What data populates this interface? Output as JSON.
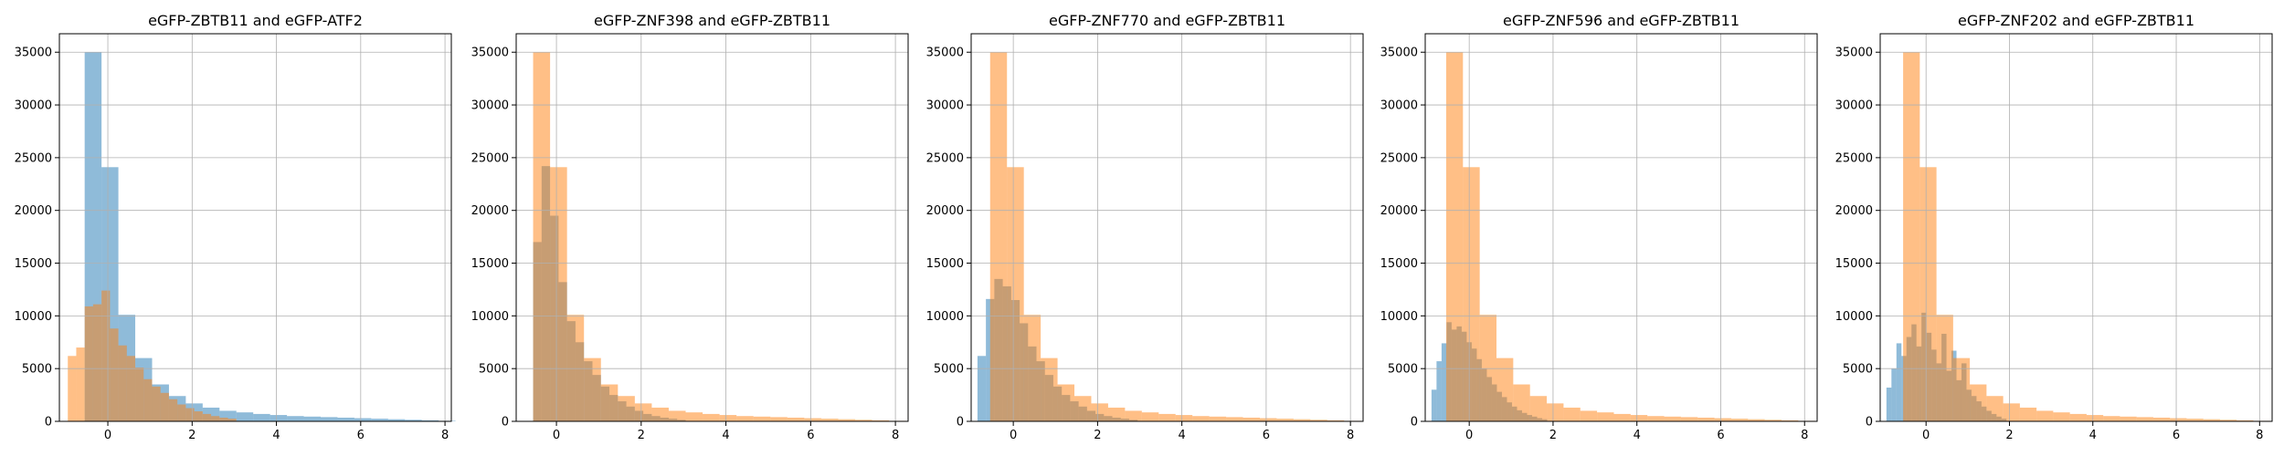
{
  "chart_data": [
    {
      "type": "bar",
      "title": "eGFP-ZBTB11 and eGFP-ATF2",
      "xlabel": "",
      "ylabel": "",
      "xlim": [
        -1.15,
        8.15
      ],
      "ylim": [
        0,
        36750
      ],
      "xticks": [
        0,
        2,
        4,
        6,
        8
      ],
      "yticks": [
        0,
        5000,
        10000,
        15000,
        20000,
        25000,
        30000,
        35000
      ],
      "grid": true,
      "series": [
        {
          "color": "#1f77b4",
          "opacity": 0.5,
          "bin_start": -0.55,
          "bin_width": 0.4,
          "values": [
            35000,
            24100,
            10100,
            6000,
            3500,
            2400,
            1700,
            1300,
            1000,
            850,
            700,
            600,
            500,
            450,
            400,
            350,
            300,
            250,
            200,
            150,
            100,
            50
          ]
        },
        {
          "color": "#ff7f0e",
          "opacity": 0.5,
          "bin_start": -0.95,
          "bin_width": 0.2,
          "values": [
            6200,
            7000,
            10900,
            11100,
            12400,
            8800,
            7200,
            6200,
            5100,
            4000,
            3300,
            2700,
            2100,
            1600,
            1250,
            950,
            700,
            500,
            350,
            250
          ]
        }
      ]
    },
    {
      "type": "bar",
      "title": "eGFP-ZNF398 and eGFP-ZBTB11",
      "xlabel": "",
      "ylabel": "",
      "xlim": [
        -0.95,
        8.3
      ],
      "ylim": [
        0,
        36750
      ],
      "xticks": [
        0,
        2,
        4,
        6,
        8
      ],
      "yticks": [
        0,
        5000,
        10000,
        15000,
        20000,
        25000,
        30000,
        35000
      ],
      "grid": true,
      "series": [
        {
          "color": "#1f77b4",
          "opacity": 0.5,
          "bin_start": -0.55,
          "bin_width": 0.2,
          "values": [
            17000,
            24200,
            19500,
            13200,
            9500,
            7500,
            5700,
            4400,
            3300,
            2500,
            1900,
            1400,
            1000,
            700,
            500,
            350,
            250,
            150
          ]
        },
        {
          "color": "#ff7f0e",
          "opacity": 0.5,
          "bin_start": -0.55,
          "bin_width": 0.4,
          "values": [
            35000,
            24100,
            10100,
            6000,
            3500,
            2400,
            1700,
            1300,
            1000,
            850,
            700,
            600,
            500,
            450,
            400,
            350,
            300,
            250,
            200,
            150,
            100,
            50
          ]
        }
      ]
    },
    {
      "type": "bar",
      "title": "eGFP-ZNF770 and eGFP-ZBTB11",
      "xlabel": "",
      "ylabel": "",
      "xlim": [
        -1.0,
        8.3
      ],
      "ylim": [
        0,
        36750
      ],
      "xticks": [
        0,
        2,
        4,
        6,
        8
      ],
      "yticks": [
        0,
        5000,
        10000,
        15000,
        20000,
        25000,
        30000,
        35000
      ],
      "grid": true,
      "series": [
        {
          "color": "#1f77b4",
          "opacity": 0.5,
          "bin_start": -0.85,
          "bin_width": 0.2,
          "values": [
            6200,
            11600,
            13500,
            12800,
            11500,
            9300,
            7100,
            5700,
            4400,
            3300,
            2500,
            1900,
            1400,
            1000,
            700,
            500,
            350,
            250,
            150
          ]
        },
        {
          "color": "#ff7f0e",
          "opacity": 0.5,
          "bin_start": -0.55,
          "bin_width": 0.4,
          "values": [
            35000,
            24100,
            10100,
            6000,
            3500,
            2400,
            1700,
            1300,
            1000,
            850,
            700,
            600,
            500,
            450,
            400,
            350,
            300,
            250,
            200,
            150,
            100,
            50
          ]
        }
      ]
    },
    {
      "type": "bar",
      "title": "eGFP-ZNF596 and eGFP-ZBTB11",
      "xlabel": "",
      "ylabel": "",
      "xlim": [
        -1.05,
        8.3
      ],
      "ylim": [
        0,
        36750
      ],
      "xticks": [
        0,
        2,
        4,
        6,
        8
      ],
      "yticks": [
        0,
        5000,
        10000,
        15000,
        20000,
        25000,
        30000,
        35000
      ],
      "grid": true,
      "series": [
        {
          "color": "#1f77b4",
          "opacity": 0.5,
          "bin_start": -0.9,
          "bin_width": 0.12,
          "values": [
            3000,
            5700,
            7400,
            9400,
            8700,
            9000,
            8500,
            7500,
            6900,
            5900,
            5000,
            4200,
            3500,
            2800,
            2300,
            1800,
            1400,
            1050,
            800,
            600,
            450,
            300,
            200
          ]
        },
        {
          "color": "#ff7f0e",
          "opacity": 0.5,
          "bin_start": -0.55,
          "bin_width": 0.4,
          "values": [
            35000,
            24100,
            10100,
            6000,
            3500,
            2400,
            1700,
            1300,
            1000,
            850,
            700,
            600,
            500,
            450,
            400,
            350,
            300,
            250,
            200,
            150,
            100,
            50
          ]
        }
      ]
    },
    {
      "type": "bar",
      "title": "eGFP-ZNF202 and eGFP-ZBTB11",
      "xlabel": "",
      "ylabel": "",
      "xlim": [
        -1.1,
        8.3
      ],
      "ylim": [
        0,
        36750
      ],
      "xticks": [
        0,
        2,
        4,
        6,
        8
      ],
      "yticks": [
        0,
        5000,
        10000,
        15000,
        20000,
        25000,
        30000,
        35000
      ],
      "grid": true,
      "series": [
        {
          "color": "#1f77b4",
          "opacity": 0.5,
          "bin_start": -0.95,
          "bin_width": 0.12,
          "values": [
            3200,
            5000,
            7400,
            6200,
            8000,
            9200,
            7100,
            10300,
            8400,
            6800,
            5500,
            8300,
            4800,
            6700,
            3900,
            5500,
            3000,
            2400,
            1900,
            1400,
            1000,
            700,
            450,
            250
          ]
        },
        {
          "color": "#ff7f0e",
          "opacity": 0.5,
          "bin_start": -0.55,
          "bin_width": 0.4,
          "values": [
            35000,
            24100,
            10100,
            6000,
            3500,
            2400,
            1700,
            1300,
            1000,
            850,
            700,
            600,
            500,
            450,
            400,
            350,
            300,
            250,
            200,
            150,
            100,
            50
          ]
        }
      ]
    }
  ]
}
